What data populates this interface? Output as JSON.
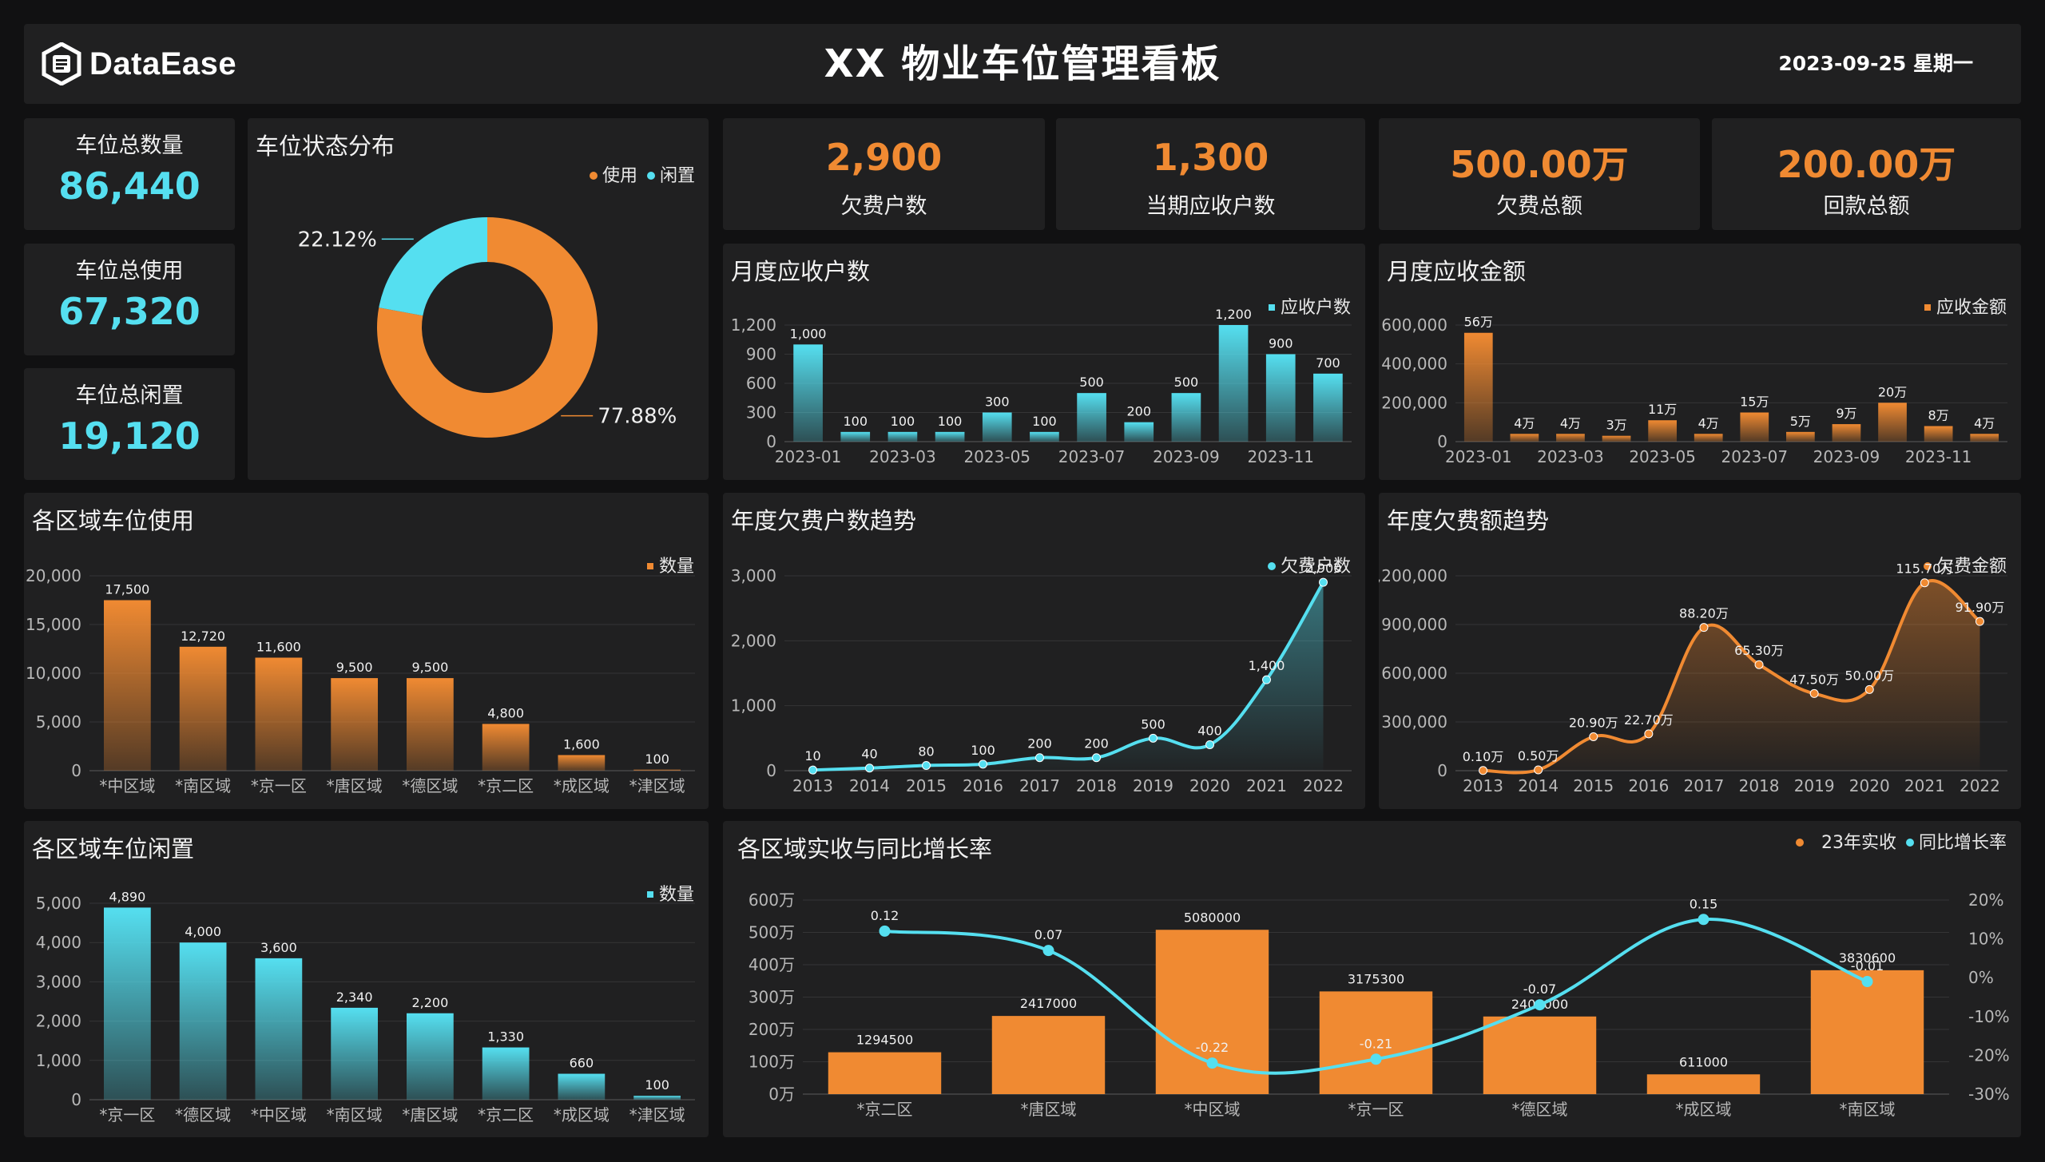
{
  "header": {
    "logo_text": "DataEase",
    "title": "XX 物业车位管理看板",
    "date": "2023-09-25 星期一"
  },
  "colors": {
    "orange": "#f08a32",
    "cyan": "#55dff0",
    "panel": "#202021",
    "bg": "#111112"
  },
  "kpi_left": [
    {
      "label": "车位总数量",
      "value": "86,440"
    },
    {
      "label": "车位总使用",
      "value": "67,320"
    },
    {
      "label": "车位总闲置",
      "value": "19,120"
    }
  ],
  "kpi_top": [
    {
      "label": "欠费户数",
      "value": "2,900"
    },
    {
      "label": "当期应收户数",
      "value": "1,300"
    },
    {
      "label": "欠费总额",
      "value": "500.00万"
    },
    {
      "label": "回款总额",
      "value": "200.00万"
    }
  ],
  "chart_data": [
    {
      "id": "status",
      "type": "pie",
      "title": "车位状态分布",
      "legend": [
        "使用",
        "闲置"
      ],
      "legend_position": "top-right",
      "series": [
        {
          "name": "使用",
          "value": 77.88,
          "label": "77.88%"
        },
        {
          "name": "闲置",
          "value": 22.12,
          "label": "22.12%"
        }
      ]
    },
    {
      "id": "monthly_count",
      "type": "bar",
      "title": "月度应收户数",
      "legend": [
        "应收户数"
      ],
      "legend_position": "top-right",
      "categories": [
        "2023-01",
        "2023-02",
        "2023-03",
        "2023-04",
        "2023-05",
        "2023-06",
        "2023-07",
        "2023-08",
        "2023-09",
        "2023-10",
        "2023-11",
        "2023-12"
      ],
      "x_tick_labels": [
        "2023-01",
        "",
        "2023-03",
        "",
        "2023-05",
        "",
        "2023-07",
        "",
        "2023-09",
        "",
        "2023-11",
        ""
      ],
      "values": [
        1000,
        100,
        100,
        100,
        300,
        100,
        500,
        200,
        500,
        1200,
        900,
        700
      ],
      "labels": [
        "1,000",
        "100",
        "100",
        "100",
        "300",
        "100",
        "500",
        "200",
        "500",
        "1,200",
        "900",
        "700"
      ],
      "y_ticks": [
        "0",
        "300",
        "600",
        "900",
        "1,200"
      ],
      "ylim": [
        0,
        1200
      ],
      "color": "cyan"
    },
    {
      "id": "monthly_amount",
      "type": "bar",
      "title": "月度应收金额",
      "legend": [
        "应收金额"
      ],
      "legend_position": "top-right",
      "categories": [
        "2023-01",
        "2023-02",
        "2023-03",
        "2023-04",
        "2023-05",
        "2023-06",
        "2023-07",
        "2023-08",
        "2023-09",
        "2023-10",
        "2023-11",
        "2023-12"
      ],
      "x_tick_labels": [
        "2023-01",
        "",
        "2023-03",
        "",
        "2023-05",
        "",
        "2023-07",
        "",
        "2023-09",
        "",
        "2023-11",
        ""
      ],
      "values": [
        560000,
        40000,
        40000,
        30000,
        110000,
        40000,
        150000,
        50000,
        90000,
        200000,
        80000,
        40000
      ],
      "labels": [
        "56万",
        "4万",
        "4万",
        "3万",
        "11万",
        "4万",
        "15万",
        "5万",
        "9万",
        "20万",
        "8万",
        "4万"
      ],
      "y_ticks": [
        "0",
        "200,000",
        "400,000",
        "600,000"
      ],
      "ylim": [
        0,
        600000
      ],
      "color": "orange"
    },
    {
      "id": "area_usage",
      "type": "bar",
      "title": "各区域车位使用",
      "legend": [
        "数量"
      ],
      "legend_position": "top-right",
      "categories": [
        "*中区域",
        "*南区域",
        "*京一区",
        "*唐区域",
        "*德区域",
        "*京二区",
        "*成区域",
        "*津区域"
      ],
      "values": [
        17500,
        12720,
        11600,
        9500,
        9500,
        4800,
        1600,
        100
      ],
      "labels": [
        "17,500",
        "12,720",
        "11,600",
        "9,500",
        "9,500",
        "4,800",
        "1,600",
        "100"
      ],
      "y_ticks": [
        "0",
        "5,000",
        "10,000",
        "15,000",
        "20,000"
      ],
      "ylim": [
        0,
        20000
      ],
      "color": "orange"
    },
    {
      "id": "yearly_arrears_count",
      "type": "area",
      "title": "年度欠费户数趋势",
      "legend": [
        "欠费户数"
      ],
      "legend_position": "top-right",
      "categories": [
        "2013",
        "2014",
        "2015",
        "2016",
        "2017",
        "2018",
        "2019",
        "2020",
        "2021",
        "2022"
      ],
      "values": [
        10,
        40,
        80,
        100,
        200,
        200,
        500,
        400,
        1400,
        2900
      ],
      "labels": [
        "10",
        "40",
        "80",
        "100",
        "200",
        "200",
        "500",
        "400",
        "1,400",
        "2,900"
      ],
      "y_ticks": [
        "0",
        "1,000",
        "2,000",
        "3,000"
      ],
      "ylim": [
        0,
        3000
      ],
      "color": "cyan"
    },
    {
      "id": "yearly_arrears_amount",
      "type": "area",
      "title": "年度欠费额趋势",
      "legend": [
        "欠费金额"
      ],
      "legend_position": "top-right",
      "categories": [
        "2013",
        "2014",
        "2015",
        "2016",
        "2017",
        "2018",
        "2019",
        "2020",
        "2021",
        "2022"
      ],
      "values": [
        1000,
        5000,
        209000,
        227000,
        882000,
        653000,
        475000,
        500000,
        1157000,
        919000
      ],
      "labels": [
        "0.10万",
        "0.50万",
        "20.90万",
        "22.70万",
        "88.20万",
        "65.30万",
        "47.50万",
        "50.00万",
        "115.70万",
        "91.90万"
      ],
      "y_ticks": [
        "0",
        "300,000",
        "600,000",
        "900,000",
        "1,200,000"
      ],
      "ylim": [
        0,
        1200000
      ],
      "color": "orange"
    },
    {
      "id": "area_idle",
      "type": "bar",
      "title": "各区域车位闲置",
      "legend": [
        "数量"
      ],
      "legend_position": "top-right",
      "categories": [
        "*京一区",
        "*德区域",
        "*中区域",
        "*南区域",
        "*唐区域",
        "*京二区",
        "*成区域",
        "*津区域"
      ],
      "values": [
        4890,
        4000,
        3600,
        2340,
        2200,
        1330,
        660,
        100
      ],
      "labels": [
        "4,890",
        "4,000",
        "3,600",
        "2,340",
        "2,200",
        "1,330",
        "660",
        "100"
      ],
      "y_ticks": [
        "0",
        "1,000",
        "2,000",
        "3,000",
        "4,000",
        "5,000"
      ],
      "ylim": [
        0,
        5000
      ],
      "color": "cyan"
    },
    {
      "id": "area_received",
      "type": "bar+line",
      "title": "各区域实收与同比增长率",
      "legend": [
        "23年实收",
        "同比增长率"
      ],
      "legend_position": "top-right",
      "categories": [
        "*京二区",
        "*唐区域",
        "*中区域",
        "*京一区",
        "*德区域",
        "*成区域",
        "*南区域"
      ],
      "bar_values": [
        1294500,
        2417000,
        5080000,
        3175300,
        2400000,
        611000,
        3830600
      ],
      "bar_labels": [
        "1294500",
        "2417000",
        "5080000",
        "3175300",
        "2400000",
        "611000",
        "3830600"
      ],
      "line_values": [
        0.12,
        0.07,
        -0.22,
        -0.21,
        -0.07,
        0.15,
        -0.01
      ],
      "line_labels": [
        "0.12",
        "0.07",
        "-0.22",
        "-0.21",
        "-0.07",
        "0.15",
        "-0.01"
      ],
      "y_left_ticks": [
        "0万",
        "100万",
        "200万",
        "300万",
        "400万",
        "500万",
        "600万"
      ],
      "ylim_left": [
        0,
        6000000
      ],
      "y_right_ticks": [
        "-30%",
        "-20%",
        "-10%",
        "0%",
        "10%",
        "20%"
      ],
      "ylim_right": [
        -0.3,
        0.2
      ]
    }
  ]
}
